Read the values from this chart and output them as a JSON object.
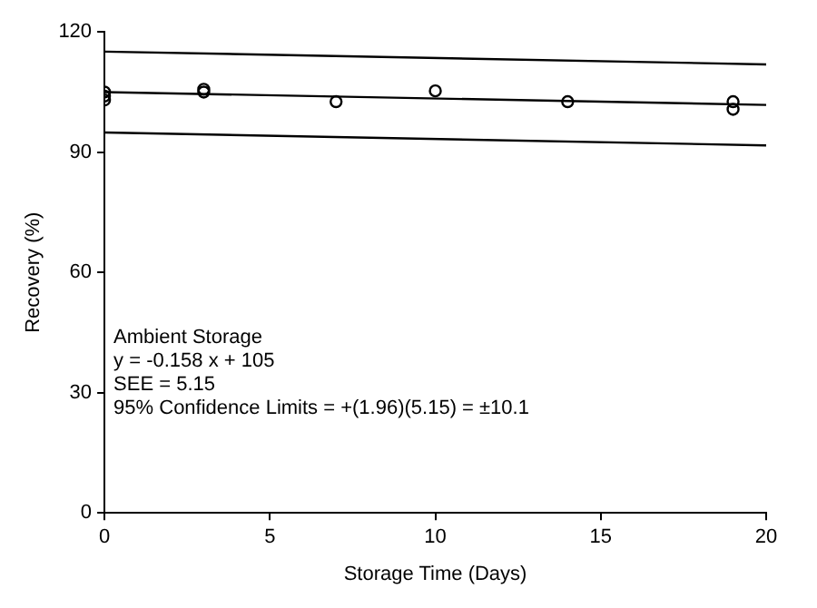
{
  "chart_data": {
    "type": "scatter",
    "xlabel": "Storage Time (Days)",
    "ylabel": "Recovery (%)",
    "xlim": [
      0,
      20
    ],
    "xticks": [
      0,
      5,
      10,
      15,
      20
    ],
    "ylim": [
      0,
      120
    ],
    "yticks": [
      0,
      30,
      60,
      90,
      120
    ],
    "grid": false,
    "legend": false,
    "marker": "circle",
    "series": [
      {
        "color": "#000000",
        "x": [
          0,
          0,
          0,
          3,
          3,
          7,
          10,
          14,
          19,
          19
        ],
        "values": [
          103,
          104,
          105,
          105,
          105.7,
          102.6,
          105.3,
          102.6,
          102.6,
          100.7
        ]
      },
      {
        "type": "line",
        "marker": "none",
        "color": "#000000",
        "x": [
          0,
          20
        ],
        "values": [
          105,
          101.8
        ]
      },
      {
        "type": "line",
        "marker": "none",
        "color": "#000000",
        "x": [
          0,
          20
        ],
        "values": [
          115.1,
          111.9
        ]
      },
      {
        "type": "line",
        "marker": "none",
        "color": "#000000",
        "x": [
          0,
          20
        ],
        "values": [
          94.9,
          91.7
        ]
      }
    ],
    "annotations": [
      "Ambient Storage",
      "y = -0.158 x + 105",
      "SEE = 5.15",
      "95% Confidence Limits = +(1.96)(5.15) = ±10.1"
    ]
  }
}
